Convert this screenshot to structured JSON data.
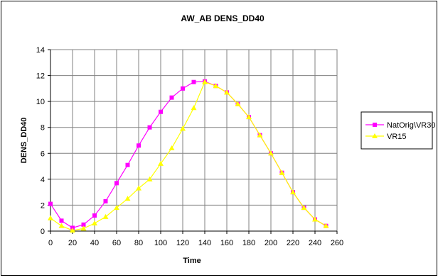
{
  "chart_data": {
    "type": "line",
    "title": "AW_AB DENS_DD40",
    "xlabel": "Time",
    "ylabel": "DENS_DD40",
    "xlim": [
      0,
      260
    ],
    "ylim": [
      0,
      14
    ],
    "xticks": [
      "0",
      "20",
      "40",
      "60",
      "80",
      "100",
      "120",
      "140",
      "160",
      "180",
      "200",
      "220",
      "240",
      "260"
    ],
    "yticks": [
      "0",
      "2",
      "4",
      "6",
      "8",
      "10",
      "12",
      "14"
    ],
    "grid": true,
    "legend_position": "right",
    "x": [
      0,
      10,
      20,
      30,
      40,
      50,
      60,
      70,
      80,
      90,
      100,
      110,
      120,
      130,
      140,
      150,
      160,
      170,
      180,
      190,
      200,
      210,
      220,
      230,
      240,
      250
    ],
    "series": [
      {
        "name": "NatOrig\\VR30",
        "color": "#ff00ff",
        "marker": "square",
        "values": [
          2.1,
          0.8,
          0.25,
          0.5,
          1.2,
          2.3,
          3.7,
          5.1,
          6.6,
          8.0,
          9.2,
          10.3,
          11.0,
          11.5,
          11.55,
          11.2,
          10.7,
          9.8,
          8.8,
          7.4,
          6.0,
          4.5,
          3.0,
          1.8,
          0.9,
          0.4
        ]
      },
      {
        "name": "VR15",
        "color": "#ffff00",
        "marker": "triangle",
        "values": [
          1.0,
          0.4,
          0.05,
          0.2,
          0.6,
          1.1,
          1.8,
          2.5,
          3.3,
          4.0,
          5.2,
          6.4,
          7.9,
          9.5,
          11.5,
          11.2,
          10.7,
          9.8,
          8.8,
          7.4,
          6.0,
          4.5,
          3.0,
          1.8,
          0.9,
          0.4
        ]
      }
    ]
  }
}
